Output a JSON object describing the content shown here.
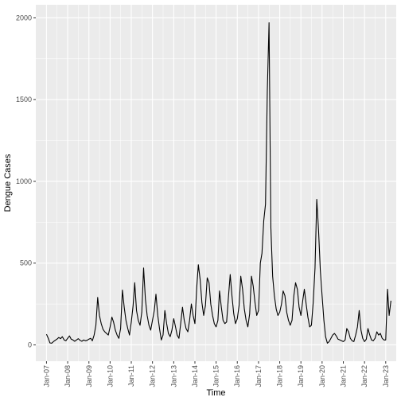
{
  "chart_data": {
    "type": "line",
    "title": "",
    "xlabel": "Time",
    "ylabel": "Dengue Cases",
    "xlim": [
      "2006-07-01",
      "2023-07-01"
    ],
    "ylim": [
      -100,
      2080
    ],
    "yticks": [
      0,
      500,
      1000,
      1500,
      2000
    ],
    "xticks": [
      {
        "date": "2007-01-01",
        "label": "Jan-07"
      },
      {
        "date": "2008-01-01",
        "label": "Jan-08"
      },
      {
        "date": "2009-01-01",
        "label": "Jan-09"
      },
      {
        "date": "2010-01-01",
        "label": "Jan-10"
      },
      {
        "date": "2011-01-01",
        "label": "Jan-11"
      },
      {
        "date": "2012-01-01",
        "label": "Jan-12"
      },
      {
        "date": "2013-01-01",
        "label": "Jan-13"
      },
      {
        "date": "2014-01-01",
        "label": "Jan-14"
      },
      {
        "date": "2015-01-01",
        "label": "Jan-15"
      },
      {
        "date": "2016-01-01",
        "label": "Jan-16"
      },
      {
        "date": "2017-01-01",
        "label": "Jan-17"
      },
      {
        "date": "2018-01-01",
        "label": "Jan-18"
      },
      {
        "date": "2019-01-01",
        "label": "Jan-19"
      },
      {
        "date": "2020-01-01",
        "label": "Jan-20"
      },
      {
        "date": "2021-01-01",
        "label": "Jan-21"
      },
      {
        "date": "2022-01-01",
        "label": "Jan-22"
      },
      {
        "date": "2023-01-01",
        "label": "Jan-23"
      }
    ],
    "grid": true,
    "legend": "none",
    "background": "#ebebeb",
    "line_color": "#000000",
    "series": [
      {
        "x": [
          "2007-01-01",
          "2007-02-01",
          "2007-03-01",
          "2007-04-01",
          "2007-05-01",
          "2007-06-01",
          "2007-07-01",
          "2007-08-01",
          "2007-09-01",
          "2007-10-01",
          "2007-11-01",
          "2007-12-01",
          "2008-01-01",
          "2008-02-01",
          "2008-03-01",
          "2008-04-01",
          "2008-05-01",
          "2008-06-01",
          "2008-07-01",
          "2008-08-01",
          "2008-09-01",
          "2008-10-01",
          "2008-11-01",
          "2008-12-01",
          "2009-01-01",
          "2009-02-01",
          "2009-03-01",
          "2009-04-01",
          "2009-05-01",
          "2009-06-01",
          "2009-07-01",
          "2009-08-01",
          "2009-09-01",
          "2009-10-01",
          "2009-11-01",
          "2009-12-01",
          "2010-01-01",
          "2010-02-01",
          "2010-03-01",
          "2010-04-01",
          "2010-05-01",
          "2010-06-01",
          "2010-07-01",
          "2010-08-01",
          "2010-09-01",
          "2010-10-01",
          "2010-11-01",
          "2010-12-01",
          "2011-01-01",
          "2011-02-01",
          "2011-03-01",
          "2011-04-01",
          "2011-05-01",
          "2011-06-01",
          "2011-07-01",
          "2011-08-01",
          "2011-09-01",
          "2011-10-01",
          "2011-11-01",
          "2011-12-01",
          "2012-01-01",
          "2012-02-01",
          "2012-03-01",
          "2012-04-01",
          "2012-05-01",
          "2012-06-01",
          "2012-07-01",
          "2012-08-01",
          "2012-09-01",
          "2012-10-01",
          "2012-11-01",
          "2012-12-01",
          "2013-01-01",
          "2013-02-01",
          "2013-03-01",
          "2013-04-01",
          "2013-05-01",
          "2013-06-01",
          "2013-07-01",
          "2013-08-01",
          "2013-09-01",
          "2013-10-01",
          "2013-11-01",
          "2013-12-01",
          "2014-01-01",
          "2014-02-01",
          "2014-03-01",
          "2014-04-01",
          "2014-05-01",
          "2014-06-01",
          "2014-07-01",
          "2014-08-01",
          "2014-09-01",
          "2014-10-01",
          "2014-11-01",
          "2014-12-01",
          "2015-01-01",
          "2015-02-01",
          "2015-03-01",
          "2015-04-01",
          "2015-05-01",
          "2015-06-01",
          "2015-07-01",
          "2015-08-01",
          "2015-09-01",
          "2015-10-01",
          "2015-11-01",
          "2015-12-01",
          "2016-01-01",
          "2016-02-01",
          "2016-03-01",
          "2016-04-01",
          "2016-05-01",
          "2016-06-01",
          "2016-07-01",
          "2016-08-01",
          "2016-09-01",
          "2016-10-01",
          "2016-11-01",
          "2016-12-01",
          "2017-01-01",
          "2017-02-01",
          "2017-03-01",
          "2017-04-01",
          "2017-05-01",
          "2017-06-01",
          "2017-07-01",
          "2017-08-01",
          "2017-09-01",
          "2017-10-01",
          "2017-11-01",
          "2017-12-01",
          "2018-01-01",
          "2018-02-01",
          "2018-03-01",
          "2018-04-01",
          "2018-05-01",
          "2018-06-01",
          "2018-07-01",
          "2018-08-01",
          "2018-09-01",
          "2018-10-01",
          "2018-11-01",
          "2018-12-01",
          "2019-01-01",
          "2019-02-01",
          "2019-03-01",
          "2019-04-01",
          "2019-05-01",
          "2019-06-01",
          "2019-07-01",
          "2019-08-01",
          "2019-09-01",
          "2019-10-01",
          "2019-11-01",
          "2019-12-01",
          "2020-01-01",
          "2020-02-01",
          "2020-03-01",
          "2020-04-01",
          "2020-05-01",
          "2020-06-01",
          "2020-07-01",
          "2020-08-01",
          "2020-09-01",
          "2020-10-01",
          "2020-11-01",
          "2020-12-01",
          "2021-01-01",
          "2021-02-01",
          "2021-03-01",
          "2021-04-01",
          "2021-05-01",
          "2021-06-01",
          "2021-07-01",
          "2021-08-01",
          "2021-09-01",
          "2021-10-01",
          "2021-11-01",
          "2021-12-01",
          "2022-01-01",
          "2022-02-01",
          "2022-03-01",
          "2022-04-01",
          "2022-05-01",
          "2022-06-01",
          "2022-07-01",
          "2022-08-01",
          "2022-09-01",
          "2022-10-01",
          "2022-11-01",
          "2022-12-01",
          "2023-01-01",
          "2023-02-01",
          "2023-03-01",
          "2023-04-01"
        ],
        "y": [
          65,
          40,
          12,
          10,
          20,
          28,
          35,
          45,
          38,
          50,
          30,
          25,
          40,
          55,
          35,
          30,
          22,
          30,
          38,
          28,
          22,
          30,
          25,
          28,
          35,
          40,
          25,
          60,
          120,
          290,
          180,
          130,
          95,
          80,
          70,
          60,
          110,
          170,
          140,
          90,
          60,
          40,
          100,
          335,
          230,
          150,
          100,
          60,
          140,
          240,
          380,
          210,
          150,
          120,
          200,
          470,
          280,
          180,
          120,
          90,
          150,
          210,
          310,
          180,
          100,
          30,
          60,
          210,
          130,
          70,
          50,
          90,
          160,
          110,
          60,
          40,
          130,
          230,
          150,
          100,
          80,
          150,
          250,
          180,
          130,
          350,
          490,
          400,
          260,
          180,
          240,
          410,
          380,
          250,
          180,
          130,
          110,
          150,
          330,
          230,
          150,
          130,
          140,
          290,
          430,
          300,
          190,
          130,
          160,
          240,
          420,
          340,
          220,
          150,
          110,
          190,
          420,
          360,
          260,
          180,
          210,
          500,
          560,
          760,
          860,
          1550,
          1970,
          720,
          420,
          300,
          220,
          180,
          200,
          250,
          330,
          300,
          200,
          150,
          120,
          150,
          300,
          380,
          340,
          230,
          180,
          270,
          340,
          250,
          170,
          110,
          120,
          260,
          470,
          890,
          700,
          460,
          300,
          150,
          50,
          10,
          20,
          40,
          60,
          70,
          55,
          35,
          30,
          25,
          20,
          30,
          100,
          80,
          40,
          25,
          20,
          60,
          110,
          210,
          90,
          40,
          20,
          35,
          100,
          60,
          30,
          25,
          40,
          80,
          60,
          70,
          40,
          30,
          30,
          340,
          180,
          270
        ]
      }
    ]
  }
}
